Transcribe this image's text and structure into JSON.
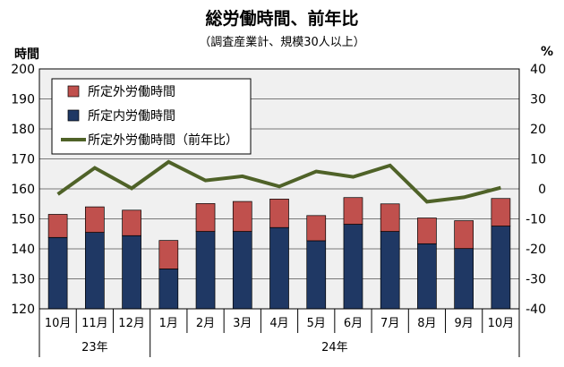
{
  "chart_data": {
    "type": "bar",
    "title": "総労働時間、前年比",
    "subtitle": "（調査産業計、規模30人以上）",
    "ylabel_left": "時間",
    "ylabel_right": "%",
    "ylim_left": [
      120,
      200
    ],
    "ylim_right": [
      -40,
      40
    ],
    "yticks_left": [
      120,
      130,
      140,
      150,
      160,
      170,
      180,
      190,
      200
    ],
    "yticks_right": [
      -40,
      -30,
      -20,
      -10,
      0,
      10,
      20,
      30,
      40
    ],
    "categories": [
      "10月",
      "11月",
      "12月",
      "1月",
      "2月",
      "3月",
      "4月",
      "5月",
      "6月",
      "7月",
      "8月",
      "9月",
      "10月"
    ],
    "year_groups": [
      {
        "label": "23年",
        "count": 3
      },
      {
        "label": "24年",
        "count": 10
      }
    ],
    "grid": true,
    "legend_position": "top-left",
    "series": [
      {
        "name": "所定外労働時間",
        "kind": "stacked-bar",
        "axis": "left",
        "color": "#c0504d",
        "values": [
          7.7,
          8.5,
          8.5,
          9.5,
          9.3,
          10.0,
          9.5,
          8.4,
          8.9,
          9.2,
          8.6,
          9.3,
          9.2
        ]
      },
      {
        "name": "所定内労働時間",
        "kind": "stacked-bar",
        "axis": "left",
        "color": "#1f3864",
        "values": [
          143.8,
          145.5,
          144.4,
          133.3,
          145.8,
          145.8,
          147.1,
          142.7,
          148.2,
          145.8,
          141.7,
          140.1,
          147.6
        ]
      },
      {
        "name": "所定外労働時間（前年比）",
        "kind": "line",
        "axis": "right",
        "color": "#4f6228",
        "values": [
          -1.8,
          7.0,
          0.2,
          9.0,
          2.8,
          4.2,
          0.8,
          5.8,
          4.0,
          7.8,
          -4.3,
          -2.8,
          0.4
        ]
      }
    ]
  }
}
